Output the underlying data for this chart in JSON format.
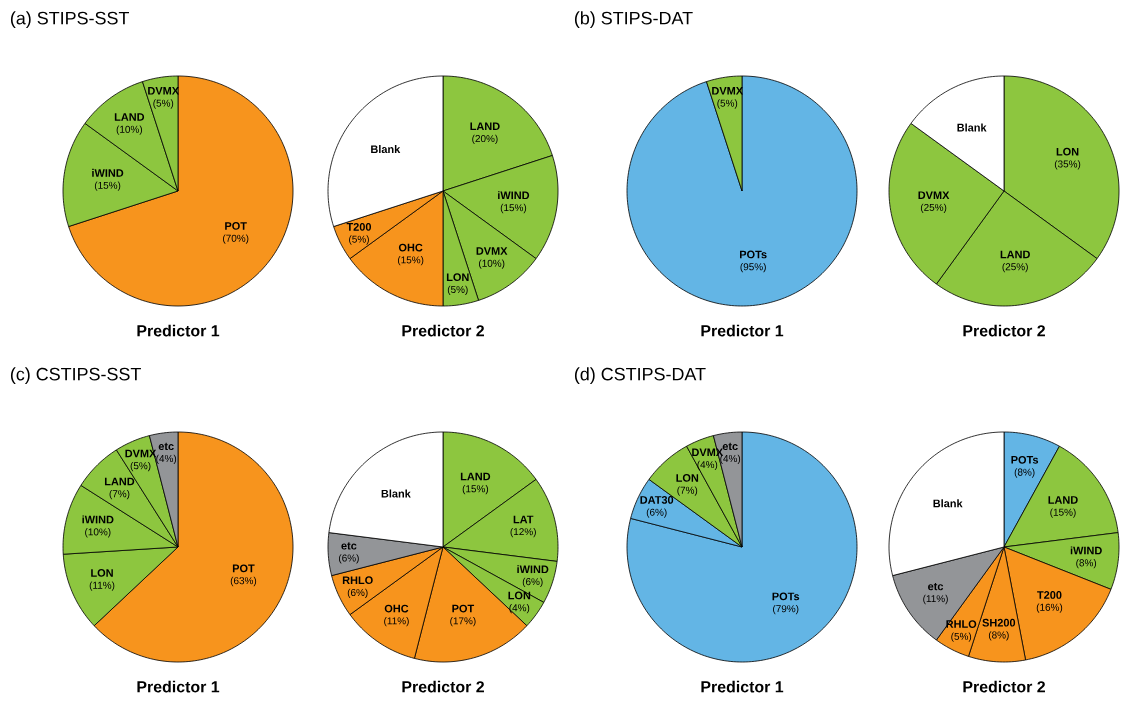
{
  "chart_data": [
    {
      "type": "pie",
      "title": "(a) STIPS-SST",
      "xlabel": "Predictor 1",
      "categories": [
        "POT",
        "iWIND",
        "LAND",
        "DVMX"
      ],
      "values": [
        70,
        15,
        10,
        5
      ],
      "colors": [
        "#f7941d",
        "#8dc63f",
        "#8dc63f",
        "#8dc63f"
      ],
      "value_labels": [
        "(70%)",
        "(15%)",
        "(10%)",
        "(5%)"
      ]
    },
    {
      "type": "pie",
      "xlabel": "Predictor 2",
      "categories": [
        "LAND",
        "iWIND",
        "DVMX",
        "LON",
        "OHC",
        "T200",
        "Blank"
      ],
      "values": [
        20,
        15,
        10,
        5,
        15,
        5,
        30
      ],
      "colors": [
        "#8dc63f",
        "#8dc63f",
        "#8dc63f",
        "#8dc63f",
        "#f7941d",
        "#f7941d",
        "#ffffff"
      ],
      "value_labels": [
        "(20%)",
        "(15%)",
        "(10%)",
        "(5%)",
        "(15%)",
        "(5%)",
        null
      ]
    },
    {
      "type": "pie",
      "title": "(b) STIPS-DAT",
      "xlabel": "Predictor 1",
      "categories": [
        "POTs",
        "DVMX"
      ],
      "values": [
        95,
        5
      ],
      "colors": [
        "#63b5e5",
        "#8dc63f"
      ],
      "value_labels": [
        "(95%)",
        "(5%)"
      ]
    },
    {
      "type": "pie",
      "xlabel": "Predictor 2",
      "categories": [
        "LON",
        "LAND",
        "DVMX",
        "Blank"
      ],
      "values": [
        35,
        25,
        25,
        15
      ],
      "colors": [
        "#8dc63f",
        "#8dc63f",
        "#8dc63f",
        "#ffffff"
      ],
      "value_labels": [
        "(35%)",
        "(25%)",
        "(25%)",
        null
      ]
    },
    {
      "type": "pie",
      "title": "(c) CSTIPS-SST",
      "xlabel": "Predictor 1",
      "categories": [
        "POT",
        "LON",
        "iWIND",
        "LAND",
        "DVMX",
        "etc"
      ],
      "values": [
        63,
        11,
        10,
        7,
        5,
        4
      ],
      "colors": [
        "#f7941d",
        "#8dc63f",
        "#8dc63f",
        "#8dc63f",
        "#8dc63f",
        "#939598"
      ],
      "value_labels": [
        "(63%)",
        "(11%)",
        "(10%)",
        "(7%)",
        "(5%)",
        "(4%)"
      ]
    },
    {
      "type": "pie",
      "xlabel": "Predictor 2",
      "categories": [
        "LAND",
        "LAT",
        "iWIND",
        "LON",
        "POT",
        "OHC",
        "RHLO",
        "etc",
        "Blank"
      ],
      "values": [
        15,
        12,
        6,
        4,
        17,
        11,
        6,
        6,
        23
      ],
      "colors": [
        "#8dc63f",
        "#8dc63f",
        "#8dc63f",
        "#8dc63f",
        "#f7941d",
        "#f7941d",
        "#f7941d",
        "#939598",
        "#ffffff"
      ],
      "value_labels": [
        "(15%)",
        "(12%)",
        "(6%)",
        "(4%)",
        "(17%)",
        "(11%)",
        "(6%)",
        "(6%)",
        null
      ]
    },
    {
      "type": "pie",
      "title": "(d) CSTIPS-DAT",
      "xlabel": "Predictor 1",
      "categories": [
        "POTs",
        "DAT30",
        "LON",
        "DVMX",
        "etc"
      ],
      "values": [
        79,
        6,
        7,
        4,
        4
      ],
      "colors": [
        "#63b5e5",
        "#63b5e5",
        "#8dc63f",
        "#8dc63f",
        "#939598"
      ],
      "value_labels": [
        "(79%)",
        "(6%)",
        "(7%)",
        "(4%)",
        "(4%)"
      ]
    },
    {
      "type": "pie",
      "xlabel": "Predictor 2",
      "categories": [
        "POTs",
        "LAND",
        "iWIND",
        "T200",
        "SH200",
        "RHLO",
        "etc",
        "Blank"
      ],
      "values": [
        8,
        15,
        8,
        16,
        8,
        5,
        11,
        29
      ],
      "colors": [
        "#63b5e5",
        "#8dc63f",
        "#8dc63f",
        "#f7941d",
        "#f7941d",
        "#f7941d",
        "#939598",
        "#ffffff"
      ],
      "value_labels": [
        "(8%)",
        "(15%)",
        "(8%)",
        "(16%)",
        "(8%)",
        "(5%)",
        "(11%)",
        null
      ]
    }
  ]
}
